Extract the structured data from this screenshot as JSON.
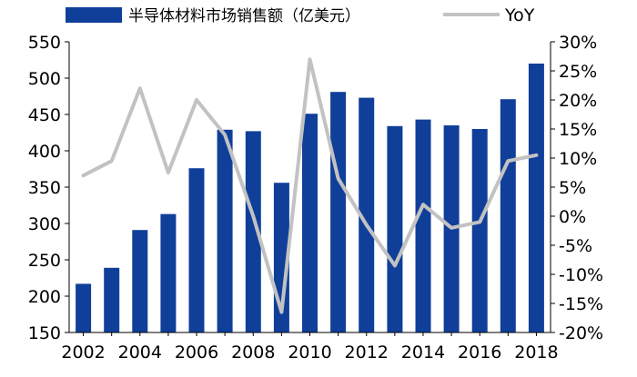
{
  "chart_data": {
    "type": "bar",
    "categories": [
      "2002",
      "2003",
      "2004",
      "2005",
      "2006",
      "2007",
      "2008",
      "2009",
      "2010",
      "2011",
      "2012",
      "2013",
      "2014",
      "2015",
      "2016",
      "2017",
      "2018"
    ],
    "x_tick_labels": [
      "2002",
      "2004",
      "2006",
      "2008",
      "2010",
      "2012",
      "2014",
      "2016",
      "2018"
    ],
    "series": [
      {
        "name": "半导体材料市场销售额（亿美元）",
        "type": "bar",
        "axis": "left",
        "color": "#103f9a",
        "values": [
          217,
          239,
          291,
          313,
          376,
          429,
          427,
          356,
          451,
          481,
          473,
          434,
          443,
          435,
          430,
          471,
          520
        ]
      },
      {
        "name": "YoY",
        "type": "line",
        "axis": "right",
        "color": "#c2c2c2",
        "values": [
          7.0,
          9.5,
          22.0,
          7.5,
          20.0,
          14.0,
          0.0,
          -16.5,
          27.0,
          6.5,
          -1.5,
          -8.5,
          2.0,
          -2.0,
          -1.0,
          9.5,
          10.5
        ]
      }
    ],
    "y_left": {
      "ylim": [
        150,
        550
      ],
      "ticks": [
        "150",
        "200",
        "250",
        "300",
        "350",
        "400",
        "450",
        "500",
        "550"
      ]
    },
    "y_right": {
      "ylim": [
        -20,
        30
      ],
      "ticks": [
        "-20%",
        "-15%",
        "-10%",
        "-5%",
        "0%",
        "5%",
        "10%",
        "15%",
        "20%",
        "25%",
        "30%"
      ]
    },
    "legend_position": "top",
    "grid": false
  }
}
